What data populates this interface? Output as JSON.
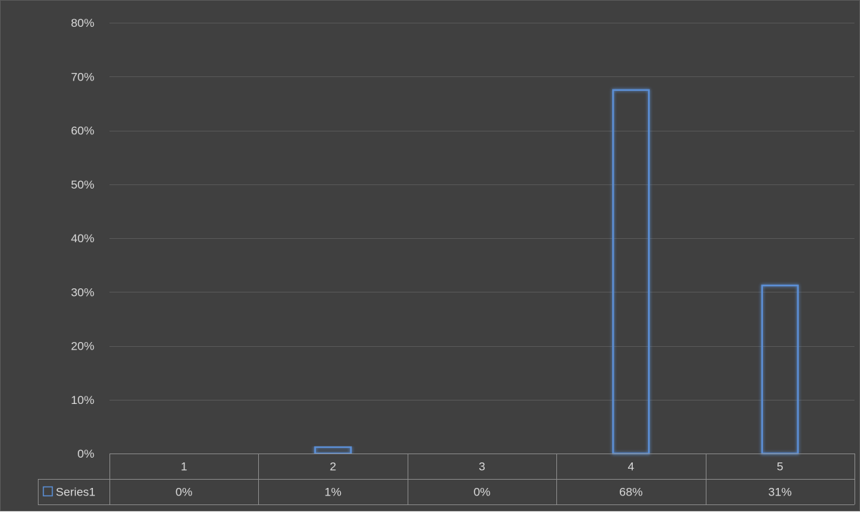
{
  "chart_data": {
    "type": "bar",
    "categories": [
      "1",
      "2",
      "3",
      "4",
      "5"
    ],
    "series": [
      {
        "name": "Series1",
        "values": [
          0.0,
          0.012,
          0.0,
          0.675,
          0.312
        ]
      }
    ],
    "data_table": {
      "Series1": [
        "0%",
        "1%",
        "0%",
        "68%",
        "31%"
      ]
    },
    "ylim": [
      0,
      0.8
    ],
    "y_ticks": [
      0,
      0.1,
      0.2,
      0.3,
      0.4,
      0.5,
      0.6,
      0.7,
      0.8
    ],
    "y_tick_labels": [
      "0%",
      "10%",
      "20%",
      "30%",
      "40%",
      "50%",
      "60%",
      "70%",
      "80%"
    ],
    "grid": true,
    "legend_placement": "data-table",
    "colors": {
      "background": "#404040",
      "bar_outline": "#5b8fd6",
      "bar_glow": "#3d6fb8",
      "gridline": "#595959",
      "table_border": "#8c8c8c",
      "text": "#d9d9d9"
    }
  }
}
